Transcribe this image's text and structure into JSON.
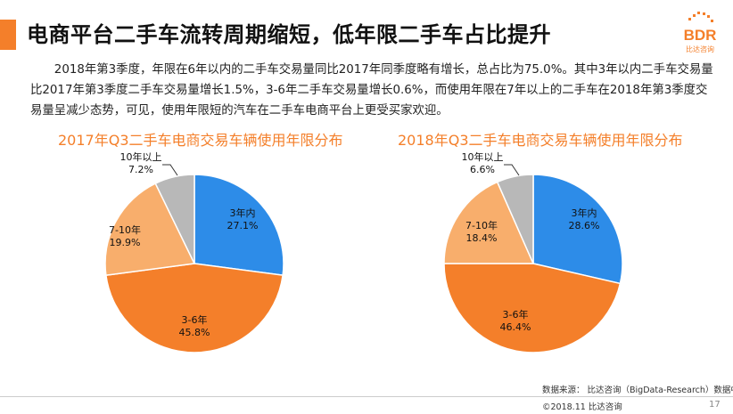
{
  "header": {
    "title": "电商平台二手车流转周期缩短，低年限二手车占比提升"
  },
  "logo": {
    "text": "BDR",
    "subtext": "比达咨询"
  },
  "intro": "2018年第3季度，年限在6年以内的二手车交易量同比2017年同季度略有增长，总占比为75.0%。其中3年以内二手车交易量比2017年第3季度二手车交易量增长1.5%，3-6年二手车交易量增长0.6%，而使用年限在7年以上的二手车在2018年第3季度交易量呈减少态势，可见，使用年限短的汽车在二手车电商平台上更受买家欢迎。",
  "colors": {
    "accent": "#f47f2a",
    "blue": "#2d8ce8",
    "orange": "#f47f2a",
    "light_orange": "#f8ae6c",
    "gray": "#b8b8b8"
  },
  "chart_data": [
    {
      "type": "pie",
      "title": "2017年Q3二手车电商交易车辆使用年限分布",
      "slices": [
        {
          "label": "3年内",
          "value": 27.1,
          "value_text": "27.1%",
          "color": "#2d8ce8"
        },
        {
          "label": "3-6年",
          "value": 45.8,
          "value_text": "45.8%",
          "color": "#f47f2a"
        },
        {
          "label": "7-10年",
          "value": 19.9,
          "value_text": "19.9%",
          "color": "#f8ae6c"
        },
        {
          "label": "10年以上",
          "value": 7.2,
          "value_text": "7.2%",
          "color": "#b8b8b8"
        }
      ]
    },
    {
      "type": "pie",
      "title": "2018年Q3二手车电商交易车辆使用年限分布",
      "slices": [
        {
          "label": "3年内",
          "value": 28.6,
          "value_text": "28.6%",
          "color": "#2d8ce8"
        },
        {
          "label": "3-6年",
          "value": 46.4,
          "value_text": "46.4%",
          "color": "#f47f2a"
        },
        {
          "label": "7-10年",
          "value": 18.4,
          "value_text": "18.4%",
          "color": "#f8ae6c"
        },
        {
          "label": "10年以上",
          "value": 6.6,
          "value_text": "6.6%",
          "color": "#b8b8b8"
        }
      ]
    }
  ],
  "footer": {
    "source": "数据来源： 比达咨询（BigData-Research）数据中心",
    "copyright": "©2018.11  比达咨询",
    "page": "17"
  }
}
